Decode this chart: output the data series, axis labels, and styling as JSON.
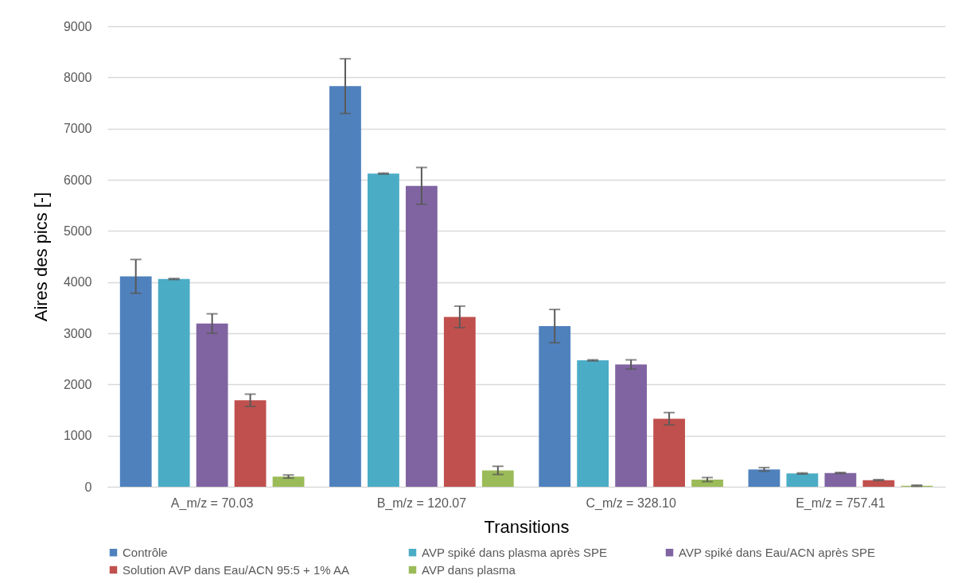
{
  "chart_data": {
    "type": "bar",
    "xlabel": "Transitions",
    "ylabel": "Aires des pics [-]",
    "categories": [
      "A_m/z = 70.03",
      "B_m/z = 120.07",
      "C_m/z = 328.10",
      "E_m/z = 757.41"
    ],
    "series": [
      {
        "name": "Contrôle",
        "color": "#4f81bd",
        "values": [
          4110,
          7830,
          3140,
          340
        ],
        "errors": [
          330,
          535,
          325,
          35
        ]
      },
      {
        "name": "AVP spiké dans plasma après SPE",
        "color": "#4bacc6",
        "values": [
          4060,
          6120,
          2470,
          260
        ],
        "errors": [
          10,
          10,
          10,
          10
        ]
      },
      {
        "name": "AVP spiké dans Eau/ACN après SPE",
        "color": "#8064a2",
        "values": [
          3190,
          5880,
          2390,
          270
        ],
        "errors": [
          190,
          360,
          90,
          10
        ]
      },
      {
        "name": "Solution AVP dans Eau/ACN 95:5 + 1% AA",
        "color": "#c0504d",
        "values": [
          1690,
          3320,
          1330,
          130
        ],
        "errors": [
          120,
          210,
          120,
          10
        ]
      },
      {
        "name": "AVP dans plasma",
        "color": "#9bbb59",
        "values": [
          200,
          320,
          140,
          20
        ],
        "errors": [
          30,
          80,
          40,
          10
        ]
      }
    ],
    "ylim": [
      0,
      9000
    ],
    "yticks": [
      0,
      1000,
      2000,
      3000,
      4000,
      5000,
      6000,
      7000,
      8000,
      9000
    ],
    "grid": "y",
    "legend": "bottom"
  }
}
